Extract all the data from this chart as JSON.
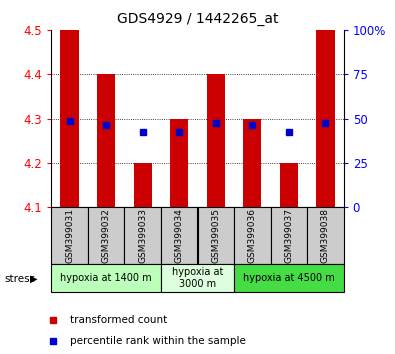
{
  "title": "GDS4929 / 1442265_at",
  "samples": [
    "GSM399031",
    "GSM399032",
    "GSM399033",
    "GSM399034",
    "GSM399035",
    "GSM399036",
    "GSM399037",
    "GSM399038"
  ],
  "bar_bottom": 4.1,
  "bar_tops": [
    4.5,
    4.4,
    4.2,
    4.3,
    4.4,
    4.3,
    4.2,
    4.5
  ],
  "blue_values": [
    4.295,
    4.285,
    4.27,
    4.27,
    4.29,
    4.285,
    4.27,
    4.29
  ],
  "ylim": [
    4.1,
    4.5
  ],
  "yticks_left": [
    4.1,
    4.2,
    4.3,
    4.4,
    4.5
  ],
  "yticks_right_labels": [
    "0",
    "25",
    "50",
    "75",
    "100%"
  ],
  "yticks_right_vals": [
    4.1,
    4.2,
    4.3,
    4.4,
    4.5
  ],
  "bar_color": "#cc0000",
  "blue_color": "#0000cc",
  "groups": [
    {
      "label": "hypoxia at 1400 m",
      "start": 0,
      "end": 3,
      "color": "#bbffbb"
    },
    {
      "label": "hypoxia at\n3000 m",
      "start": 3,
      "end": 5,
      "color": "#ddffdd"
    },
    {
      "label": "hypoxia at 4500 m",
      "start": 5,
      "end": 8,
      "color": "#44dd44"
    }
  ],
  "legend_red_label": "transformed count",
  "legend_blue_label": "percentile rank within the sample",
  "stress_label": "stress",
  "bar_width": 0.5,
  "blue_marker_size": 5,
  "sample_bg": "#cccccc",
  "grid_yticks": [
    4.2,
    4.3,
    4.4
  ]
}
